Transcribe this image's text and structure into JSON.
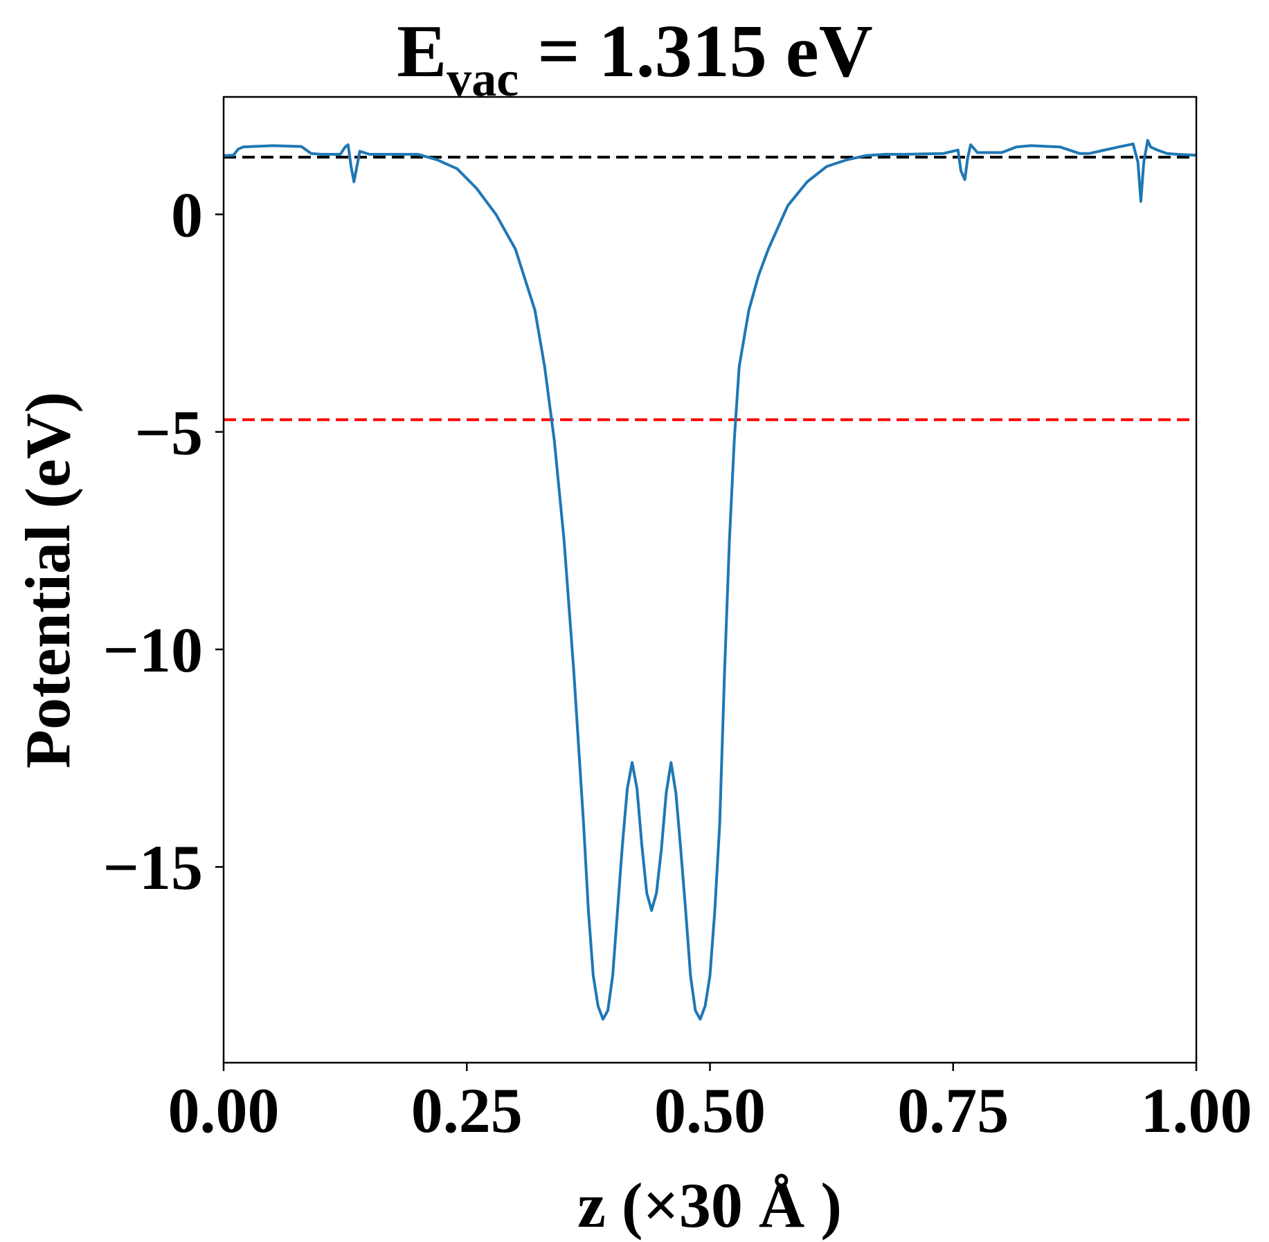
{
  "chart_data": {
    "type": "line",
    "title": {
      "main": "E",
      "subscript": "vac",
      "rest": " = 1.315 eV"
    },
    "xlabel": "z (×30 Å )",
    "ylabel": "Potential (eV)",
    "xlim": [
      0,
      1
    ],
    "ylim": [
      -19.5,
      2.7
    ],
    "xticks": [
      0.0,
      0.25,
      0.5,
      0.75,
      1.0
    ],
    "xtick_labels": [
      "0.00",
      "0.25",
      "0.50",
      "0.75",
      "1.00"
    ],
    "yticks": [
      0,
      -5,
      -10,
      -15
    ],
    "ytick_labels": [
      "0",
      "−5",
      "−10",
      "−15"
    ],
    "grid": false,
    "reference_lines": [
      {
        "y": 1.315,
        "color": "#000000",
        "style": "dashed"
      },
      {
        "y": -4.72,
        "color": "#ff0000",
        "style": "dashed"
      }
    ],
    "series": [
      {
        "color": "#1f77b4",
        "x": [
          0.0,
          0.01,
          0.015,
          0.02,
          0.05,
          0.08,
          0.09,
          0.1,
          0.12,
          0.125,
          0.128,
          0.131,
          0.134,
          0.137,
          0.14,
          0.15,
          0.17,
          0.2,
          0.22,
          0.24,
          0.26,
          0.28,
          0.3,
          0.32,
          0.33,
          0.34,
          0.35,
          0.36,
          0.37,
          0.375,
          0.38,
          0.385,
          0.39,
          0.395,
          0.4,
          0.405,
          0.41,
          0.415,
          0.42,
          0.425,
          0.43,
          0.435,
          0.44,
          0.445,
          0.45,
          0.455,
          0.46,
          0.465,
          0.47,
          0.475,
          0.48,
          0.485,
          0.49,
          0.495,
          0.5,
          0.505,
          0.51,
          0.515,
          0.52,
          0.525,
          0.53,
          0.54,
          0.55,
          0.56,
          0.57,
          0.58,
          0.6,
          0.62,
          0.64,
          0.66,
          0.68,
          0.7,
          0.74,
          0.755,
          0.758,
          0.762,
          0.765,
          0.768,
          0.775,
          0.8,
          0.815,
          0.83,
          0.86,
          0.88,
          0.89,
          0.9,
          0.92,
          0.935,
          0.94,
          0.943,
          0.946,
          0.95,
          0.953,
          0.96,
          0.97,
          0.98,
          1.0
        ],
        "y": [
          1.35,
          1.36,
          1.5,
          1.55,
          1.58,
          1.56,
          1.4,
          1.38,
          1.38,
          1.55,
          1.6,
          1.1,
          0.75,
          1.1,
          1.45,
          1.38,
          1.38,
          1.38,
          1.25,
          1.05,
          0.6,
          0.0,
          -0.8,
          -2.2,
          -3.5,
          -5.2,
          -7.5,
          -10.5,
          -14.0,
          -16.0,
          -17.5,
          -18.2,
          -18.5,
          -18.3,
          -17.5,
          -16.0,
          -14.5,
          -13.2,
          -12.6,
          -13.2,
          -14.5,
          -15.6,
          -16.0,
          -15.6,
          -14.6,
          -13.3,
          -12.6,
          -13.3,
          -14.6,
          -16.0,
          -17.5,
          -18.3,
          -18.5,
          -18.2,
          -17.5,
          -16.0,
          -14.0,
          -10.5,
          -7.5,
          -5.2,
          -3.5,
          -2.2,
          -1.4,
          -0.8,
          -0.3,
          0.2,
          0.75,
          1.1,
          1.25,
          1.35,
          1.38,
          1.38,
          1.4,
          1.48,
          1.0,
          0.8,
          1.3,
          1.6,
          1.42,
          1.42,
          1.55,
          1.58,
          1.55,
          1.4,
          1.4,
          1.45,
          1.55,
          1.62,
          1.2,
          0.3,
          1.2,
          1.7,
          1.55,
          1.48,
          1.4,
          1.38,
          1.36
        ]
      }
    ]
  }
}
